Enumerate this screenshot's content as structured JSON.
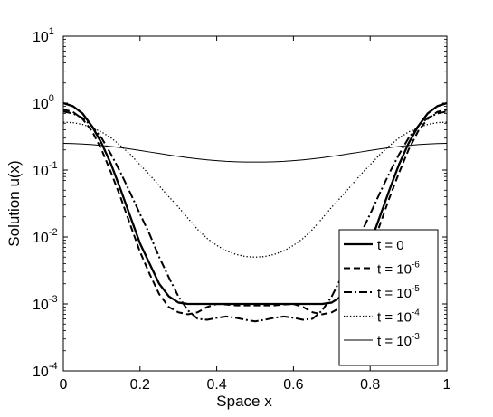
{
  "chart_data": {
    "type": "line",
    "xlabel": "Space x",
    "ylabel": "Solution u(x)",
    "xlim": [
      0,
      1
    ],
    "ylim": [
      0.0001,
      10
    ],
    "yscale": "log",
    "grid": false,
    "legend_position": "bottom-right",
    "x_ticks": [
      {
        "value": 0,
        "label": "0"
      },
      {
        "value": 0.2,
        "label": "0.2"
      },
      {
        "value": 0.4,
        "label": "0.4"
      },
      {
        "value": 0.6,
        "label": "0.6"
      },
      {
        "value": 0.8,
        "label": "0.8"
      },
      {
        "value": 1,
        "label": "1"
      }
    ],
    "y_ticks": [
      {
        "value": 10,
        "base": "10",
        "exp": "1"
      },
      {
        "value": 1,
        "base": "10",
        "exp": "0"
      },
      {
        "value": 0.1,
        "base": "10",
        "exp": "-1"
      },
      {
        "value": 0.01,
        "base": "10",
        "exp": "-2"
      },
      {
        "value": 0.001,
        "base": "10",
        "exp": "-3"
      },
      {
        "value": 0.0001,
        "base": "10",
        "exp": "-4"
      }
    ],
    "x": [
      0,
      0.025,
      0.05,
      0.075,
      0.1,
      0.125,
      0.15,
      0.175,
      0.2,
      0.225,
      0.25,
      0.275,
      0.3,
      0.325,
      0.35,
      0.375,
      0.4,
      0.425,
      0.45,
      0.475,
      0.5,
      0.525,
      0.55,
      0.575,
      0.6,
      0.625,
      0.65,
      0.675,
      0.7,
      0.725,
      0.75,
      0.775,
      0.8,
      0.825,
      0.85,
      0.875,
      0.9,
      0.925,
      0.95,
      0.975,
      1
    ],
    "series": [
      {
        "name_text": "t = 0",
        "name_base": "",
        "name_exp": "",
        "style": "solid-thick",
        "values": [
          1.0,
          0.9,
          0.7,
          0.45,
          0.25,
          0.12,
          0.05,
          0.02,
          0.008,
          0.004,
          0.002,
          0.0013,
          0.00105,
          0.001,
          0.001,
          0.001,
          0.001,
          0.001,
          0.001,
          0.001,
          0.001,
          0.001,
          0.001,
          0.001,
          0.001,
          0.001,
          0.001,
          0.001,
          0.00105,
          0.0013,
          0.002,
          0.004,
          0.008,
          0.02,
          0.05,
          0.12,
          0.25,
          0.45,
          0.7,
          0.9,
          1.0
        ]
      },
      {
        "name_text": "t = ",
        "name_base": "10",
        "name_exp": "-6",
        "style": "dashed",
        "values": [
          0.8,
          0.74,
          0.58,
          0.38,
          0.2,
          0.09,
          0.038,
          0.015,
          0.006,
          0.0028,
          0.0014,
          0.0009,
          0.00075,
          0.0007,
          0.00075,
          0.0009,
          0.001,
          0.00098,
          0.00095,
          0.00095,
          0.00095,
          0.00095,
          0.00095,
          0.00098,
          0.001,
          0.0009,
          0.00075,
          0.0007,
          0.00075,
          0.0009,
          0.0014,
          0.0028,
          0.006,
          0.015,
          0.038,
          0.09,
          0.2,
          0.38,
          0.58,
          0.74,
          0.8
        ]
      },
      {
        "name_text": "t = ",
        "name_base": "10",
        "name_exp": "-5",
        "style": "dashdot",
        "values": [
          0.75,
          0.7,
          0.6,
          0.45,
          0.3,
          0.17,
          0.09,
          0.045,
          0.022,
          0.011,
          0.005,
          0.0025,
          0.0013,
          0.0008,
          0.0006,
          0.00058,
          0.00062,
          0.00065,
          0.00062,
          0.00058,
          0.00055,
          0.00058,
          0.00062,
          0.00065,
          0.00062,
          0.00058,
          0.0006,
          0.0008,
          0.0013,
          0.0025,
          0.005,
          0.011,
          0.022,
          0.045,
          0.09,
          0.17,
          0.3,
          0.45,
          0.6,
          0.7,
          0.75
        ]
      },
      {
        "name_text": "t = ",
        "name_base": "10",
        "name_exp": "-4",
        "style": "dotted",
        "values": [
          0.52,
          0.51,
          0.48,
          0.43,
          0.37,
          0.3,
          0.23,
          0.17,
          0.12,
          0.085,
          0.058,
          0.04,
          0.028,
          0.019,
          0.013,
          0.0095,
          0.0075,
          0.0062,
          0.0055,
          0.0051,
          0.005,
          0.0051,
          0.0055,
          0.0062,
          0.0075,
          0.0095,
          0.013,
          0.019,
          0.028,
          0.04,
          0.058,
          0.085,
          0.12,
          0.17,
          0.23,
          0.3,
          0.37,
          0.43,
          0.48,
          0.51,
          0.52
        ]
      },
      {
        "name_text": "t = ",
        "name_base": "10",
        "name_exp": "-3",
        "style": "solid-thin",
        "values": [
          0.25,
          0.248,
          0.245,
          0.24,
          0.233,
          0.225,
          0.216,
          0.206,
          0.196,
          0.186,
          0.177,
          0.168,
          0.16,
          0.153,
          0.147,
          0.142,
          0.138,
          0.135,
          0.133,
          0.132,
          0.132,
          0.132,
          0.133,
          0.135,
          0.138,
          0.142,
          0.147,
          0.153,
          0.16,
          0.168,
          0.177,
          0.186,
          0.196,
          0.206,
          0.216,
          0.225,
          0.233,
          0.24,
          0.245,
          0.248,
          0.25
        ]
      }
    ]
  }
}
